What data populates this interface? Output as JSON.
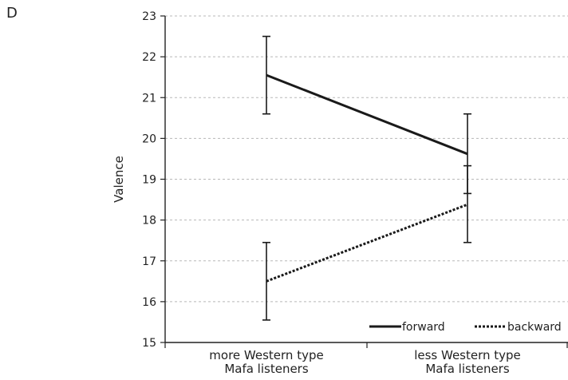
{
  "panel_label": "D",
  "chart_data": {
    "type": "line",
    "ylabel": "Valence",
    "ylim": [
      15,
      23
    ],
    "yticks": [
      "15",
      "16",
      "17",
      "18",
      "19",
      "20",
      "21",
      "22",
      "23"
    ],
    "categories": [
      [
        "more Western type",
        "Mafa listeners"
      ],
      [
        "less Western type",
        "Mafa listeners"
      ]
    ],
    "grid": "horizontal dashed",
    "legend_position": "bottom-right",
    "series": [
      {
        "name": "forward",
        "line_style": "solid",
        "values": [
          21.55,
          19.62
        ],
        "error_low": [
          20.6,
          18.65
        ],
        "error_high": [
          22.5,
          20.6
        ]
      },
      {
        "name": "backward",
        "line_style": "dotted",
        "values": [
          16.5,
          18.38
        ],
        "error_low": [
          15.55,
          17.45
        ],
        "error_high": [
          17.45,
          19.33
        ]
      }
    ]
  }
}
